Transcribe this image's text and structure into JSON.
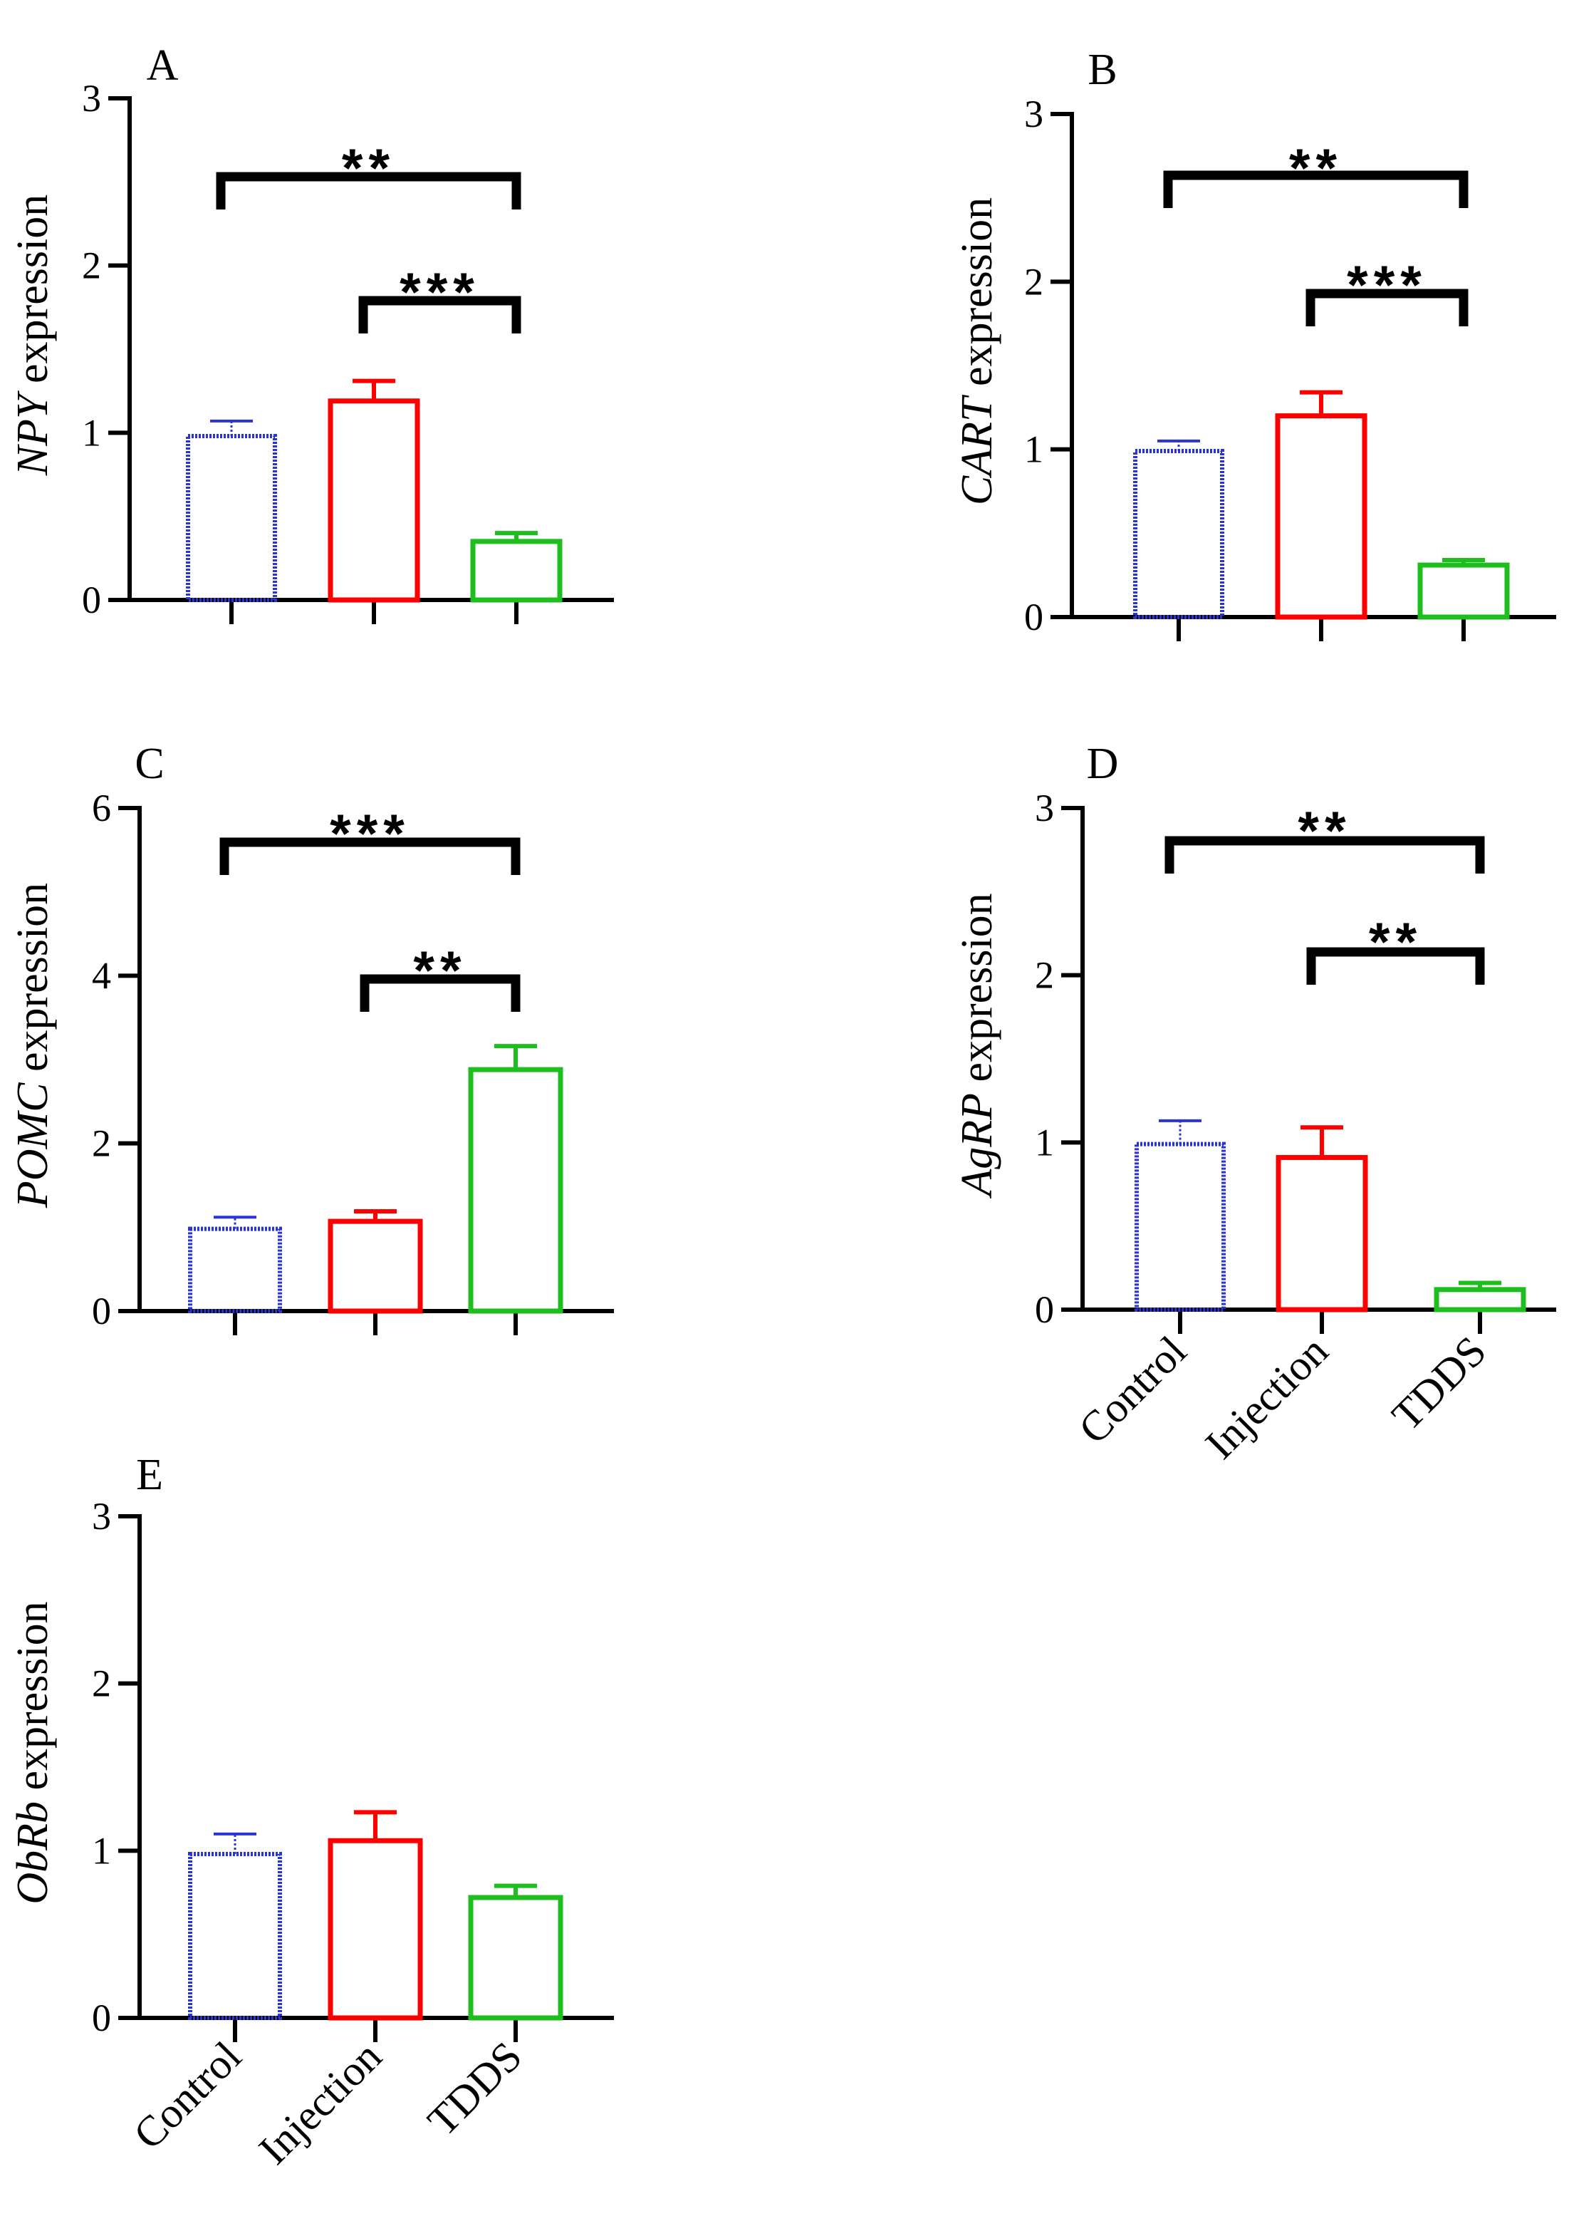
{
  "chart_data": [
    {
      "type": "bar",
      "panel_label": "A",
      "ylabel_gene": "NPY",
      "ylabel_suffix": " expression",
      "ylim": [
        0,
        3
      ],
      "yticks": [
        0,
        1,
        2,
        3
      ],
      "categories": [
        "Control",
        "Injection",
        "TDDS"
      ],
      "show_category_labels": false,
      "values": [
        0.98,
        1.19,
        0.35
      ],
      "errors": [
        0.09,
        0.12,
        0.05
      ],
      "significance": [
        {
          "from": 0,
          "to": 2,
          "label": "**"
        },
        {
          "from": 1,
          "to": 2,
          "label": "***"
        }
      ]
    },
    {
      "type": "bar",
      "panel_label": "B",
      "ylabel_gene": "CART",
      "ylabel_suffix": " expression",
      "ylim": [
        0,
        3
      ],
      "yticks": [
        0,
        1,
        2,
        3
      ],
      "categories": [
        "Control",
        "Injection",
        "TDDS"
      ],
      "show_category_labels": false,
      "values": [
        0.99,
        1.2,
        0.31
      ],
      "errors": [
        0.06,
        0.14,
        0.03
      ],
      "significance": [
        {
          "from": 0,
          "to": 2,
          "label": "**"
        },
        {
          "from": 1,
          "to": 2,
          "label": "***"
        }
      ]
    },
    {
      "type": "bar",
      "panel_label": "C",
      "ylabel_gene": "POMC",
      "ylabel_suffix": " expression",
      "ylim": [
        0,
        6
      ],
      "yticks": [
        0,
        2,
        4,
        6
      ],
      "categories": [
        "Control",
        "Injection",
        "TDDS"
      ],
      "show_category_labels": false,
      "values": [
        0.98,
        1.07,
        2.88
      ],
      "errors": [
        0.14,
        0.12,
        0.28
      ],
      "significance": [
        {
          "from": 0,
          "to": 2,
          "label": "***"
        },
        {
          "from": 1,
          "to": 2,
          "label": "**"
        }
      ]
    },
    {
      "type": "bar",
      "panel_label": "D",
      "ylabel_gene": "AgRP",
      "ylabel_suffix": " expression",
      "ylim": [
        0,
        3
      ],
      "yticks": [
        0,
        1,
        2,
        3
      ],
      "categories": [
        "Control",
        "Injection",
        "TDDS"
      ],
      "show_category_labels": true,
      "values": [
        0.99,
        0.91,
        0.12
      ],
      "errors": [
        0.14,
        0.18,
        0.04
      ],
      "significance": [
        {
          "from": 0,
          "to": 2,
          "label": "**"
        },
        {
          "from": 1,
          "to": 2,
          "label": "**"
        }
      ]
    },
    {
      "type": "bar",
      "panel_label": "E",
      "ylabel_gene": "ObRb",
      "ylabel_suffix": " expression",
      "ylim": [
        0,
        3
      ],
      "yticks": [
        0,
        1,
        2,
        3
      ],
      "categories": [
        "Control",
        "Injection",
        "TDDS"
      ],
      "show_category_labels": true,
      "values": [
        0.98,
        1.06,
        0.72
      ],
      "errors": [
        0.12,
        0.17,
        0.07
      ],
      "significance": []
    }
  ],
  "colors": {
    "Control": "#2a33d4",
    "Injection": "#ff0000",
    "TDDS": "#1dbe1d",
    "axis": "#000000"
  }
}
